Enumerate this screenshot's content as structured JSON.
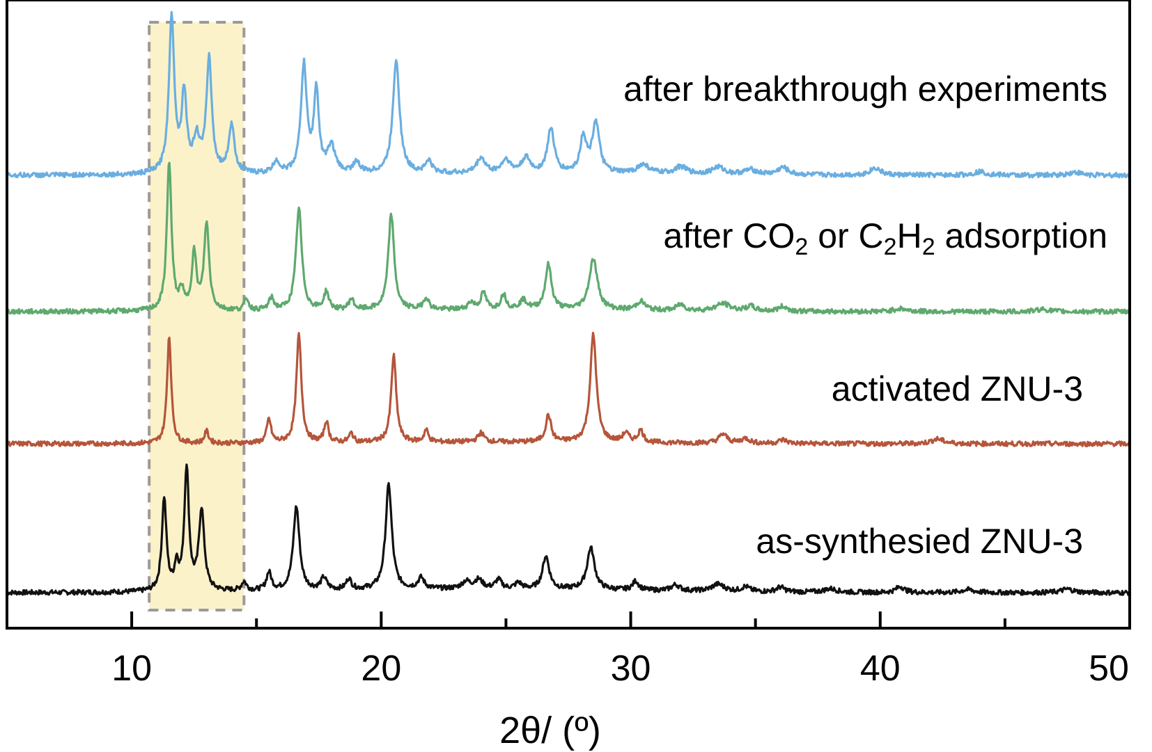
{
  "chart_data": {
    "type": "line",
    "title": "",
    "xlabel": "2θ/ (º)",
    "ylabel": "",
    "xlim": [
      5,
      50
    ],
    "x_ticks": [
      10,
      20,
      30,
      40,
      50
    ],
    "x_tick_labels": [
      "10",
      "20",
      "30",
      "40",
      "50"
    ],
    "y_ticks": "none",
    "grid": false,
    "legend": "labels placed to the right above each trace",
    "highlight_region": {
      "x_range": [
        10.7,
        14.5
      ],
      "fill": "#f9eeb8",
      "border": "dashed grey"
    },
    "series": [
      {
        "name": "as-synthesied ZNU-3",
        "color": "#111111",
        "baseline": 0.05,
        "peaks": [
          [
            11.3,
            1.55,
            0.11
          ],
          [
            11.8,
            0.4,
            0.1
          ],
          [
            12.2,
            2.05,
            0.11
          ],
          [
            12.8,
            1.35,
            0.13
          ],
          [
            14.5,
            0.15,
            0.12
          ],
          [
            15.5,
            0.3,
            0.12
          ],
          [
            16.6,
            1.4,
            0.15
          ],
          [
            17.7,
            0.2,
            0.14
          ],
          [
            18.7,
            0.18,
            0.12
          ],
          [
            20.3,
            1.75,
            0.15
          ],
          [
            21.6,
            0.18,
            0.15
          ],
          [
            23.4,
            0.12,
            0.2
          ],
          [
            23.9,
            0.15,
            0.2
          ],
          [
            24.7,
            0.15,
            0.15
          ],
          [
            25.5,
            0.1,
            0.15
          ],
          [
            26.6,
            0.55,
            0.16
          ],
          [
            28.4,
            0.7,
            0.18
          ],
          [
            30.2,
            0.15,
            0.15
          ],
          [
            31.8,
            0.1,
            0.2
          ],
          [
            33.5,
            0.12,
            0.3
          ],
          [
            34.6,
            0.08,
            0.2
          ],
          [
            36.0,
            0.08,
            0.2
          ],
          [
            38.0,
            0.06,
            0.3
          ],
          [
            40.8,
            0.1,
            0.2
          ],
          [
            43.5,
            0.05,
            0.3
          ],
          [
            47.5,
            0.06,
            0.3
          ]
        ]
      },
      {
        "name": "activated ZNU-3",
        "color": "#b5553a",
        "baseline": 0.0,
        "peaks": [
          [
            11.5,
            1.8,
            0.1
          ],
          [
            13.0,
            0.2,
            0.1
          ],
          [
            15.5,
            0.4,
            0.1
          ],
          [
            16.7,
            1.8,
            0.12
          ],
          [
            17.8,
            0.35,
            0.1
          ],
          [
            18.8,
            0.15,
            0.1
          ],
          [
            20.5,
            1.45,
            0.12
          ],
          [
            21.8,
            0.2,
            0.1
          ],
          [
            24.0,
            0.15,
            0.15
          ],
          [
            26.7,
            0.45,
            0.13
          ],
          [
            28.5,
            1.8,
            0.15
          ],
          [
            29.8,
            0.15,
            0.15
          ],
          [
            30.4,
            0.2,
            0.13
          ],
          [
            33.7,
            0.15,
            0.2
          ],
          [
            34.6,
            0.08,
            0.2
          ],
          [
            36.1,
            0.06,
            0.2
          ],
          [
            42.3,
            0.08,
            0.3
          ]
        ]
      },
      {
        "name": "after CO2 or C2H2 adsorption",
        "color": "#5ea96e",
        "baseline": 0.0,
        "peaks": [
          [
            11.5,
            2.5,
            0.11
          ],
          [
            12.0,
            0.3,
            0.1
          ],
          [
            12.5,
            0.95,
            0.11
          ],
          [
            13.0,
            1.45,
            0.12
          ],
          [
            14.6,
            0.2,
            0.1
          ],
          [
            15.6,
            0.2,
            0.12
          ],
          [
            16.7,
            1.7,
            0.14
          ],
          [
            17.8,
            0.3,
            0.12
          ],
          [
            18.8,
            0.18,
            0.12
          ],
          [
            20.4,
            1.6,
            0.14
          ],
          [
            21.8,
            0.2,
            0.13
          ],
          [
            23.6,
            0.12,
            0.15
          ],
          [
            24.1,
            0.28,
            0.13
          ],
          [
            24.9,
            0.25,
            0.13
          ],
          [
            25.7,
            0.15,
            0.18
          ],
          [
            26.7,
            0.75,
            0.15
          ],
          [
            28.5,
            0.85,
            0.2
          ],
          [
            30.4,
            0.15,
            0.2
          ],
          [
            32.0,
            0.1,
            0.2
          ],
          [
            33.7,
            0.12,
            0.35
          ],
          [
            34.8,
            0.08,
            0.2
          ],
          [
            36.1,
            0.08,
            0.2
          ],
          [
            40.8,
            0.05,
            0.3
          ],
          [
            46.5,
            0.04,
            0.3
          ]
        ]
      },
      {
        "name": "after breakthrough experiments",
        "color": "#6aaee0",
        "baseline": 0.0,
        "peaks": [
          [
            11.6,
            2.6,
            0.13
          ],
          [
            12.1,
            1.3,
            0.12
          ],
          [
            12.6,
            0.55,
            0.15
          ],
          [
            13.1,
            1.9,
            0.13
          ],
          [
            14.0,
            0.8,
            0.14
          ],
          [
            15.8,
            0.2,
            0.15
          ],
          [
            16.9,
            1.8,
            0.14
          ],
          [
            17.4,
            1.35,
            0.12
          ],
          [
            18.0,
            0.45,
            0.18
          ],
          [
            19.0,
            0.18,
            0.15
          ],
          [
            20.6,
            1.9,
            0.16
          ],
          [
            21.9,
            0.2,
            0.15
          ],
          [
            24.0,
            0.25,
            0.2
          ],
          [
            25.0,
            0.22,
            0.2
          ],
          [
            25.8,
            0.25,
            0.2
          ],
          [
            26.8,
            0.75,
            0.16
          ],
          [
            28.1,
            0.6,
            0.15
          ],
          [
            28.6,
            0.85,
            0.17
          ],
          [
            30.5,
            0.15,
            0.3
          ],
          [
            32.0,
            0.12,
            0.3
          ],
          [
            33.5,
            0.12,
            0.3
          ],
          [
            34.8,
            0.08,
            0.3
          ],
          [
            36.1,
            0.12,
            0.25
          ],
          [
            39.8,
            0.12,
            0.25
          ],
          [
            44.0,
            0.06,
            0.3
          ],
          [
            47.8,
            0.05,
            0.3
          ]
        ]
      }
    ]
  }
}
